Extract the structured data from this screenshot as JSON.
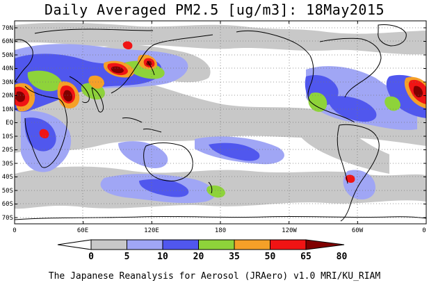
{
  "title": "Daily Averaged PM2.5 [ug/m3]: 18May2015",
  "credit": "The Japanese Reanalysis for Aerosol (JRAero) v1.0 MRI/KU_RIAM",
  "latitude_labels": [
    "70N",
    "60N",
    "50N",
    "40N",
    "30N",
    "20N",
    "10N",
    "EQ",
    "10S",
    "20S",
    "30S",
    "40S",
    "50S",
    "60S",
    "70S"
  ],
  "longitude_labels": [
    "0",
    "60E",
    "120E",
    "180",
    "120W",
    "60W",
    "0"
  ],
  "legend": {
    "breaks": [
      "0",
      "5",
      "10",
      "20",
      "35",
      "50",
      "65",
      "80"
    ],
    "colors": [
      "#ffffff",
      "#c8c8c8",
      "#a0a6f5",
      "#5057ee",
      "#8ed33a",
      "#f5a028",
      "#f01414",
      "#800000"
    ]
  },
  "colors": {
    "land_outline": "#000000",
    "grid": "#777777",
    "map_frame": "#000000"
  },
  "chart_data": {
    "type": "heatmap",
    "variable": "PM2.5",
    "units": "ug/m3",
    "date": "18May2015",
    "x_range_deg": [
      0,
      360
    ],
    "y_range_deg": [
      -75,
      75
    ],
    "bins": [
      0,
      5,
      10,
      20,
      35,
      50,
      65,
      80
    ],
    "regions": [
      {
        "lon": [
          0,
          50
        ],
        "lat": [
          8,
          30
        ],
        "level": 7
      },
      {
        "lon": [
          55,
          85
        ],
        "lat": [
          14,
          30
        ],
        "level": 7
      },
      {
        "lon": [
          95,
          120
        ],
        "lat": [
          30,
          45
        ],
        "level": 7
      },
      {
        "lon": [
          125,
          135
        ],
        "lat": [
          36,
          46
        ],
        "level": 6
      },
      {
        "lon": [
          20,
          40
        ],
        "lat": [
          -12,
          0
        ],
        "level": 6
      },
      {
        "lon": [
          300,
          320
        ],
        "lat": [
          -40,
          -30
        ],
        "level": 6
      },
      {
        "lon": [
          325,
          360
        ],
        "lat": [
          10,
          30
        ],
        "level": 7
      },
      {
        "lon": [
          240,
          265
        ],
        "lat": [
          15,
          30
        ],
        "level": 5
      }
    ]
  }
}
